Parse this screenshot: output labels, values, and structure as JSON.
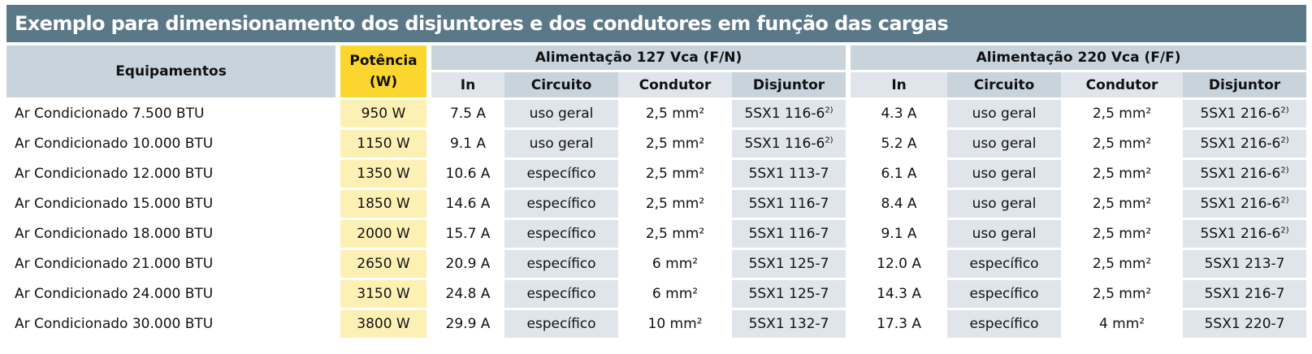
{
  "title": "Exemplo para dimensionamento dos disjuntores e dos condutores em função das cargas",
  "headers": {
    "equipamentos": "Equipamentos",
    "potencia_line1": "Potência",
    "potencia_line2": "(W)",
    "group_127": "Alimentação 127 Vca (F/N)",
    "group_220": "Alimentação 220 Vca (F/F)",
    "in": "In",
    "circuito": "Circuito",
    "condutor": "Condutor",
    "disjuntor": "Disjuntor"
  },
  "rows": [
    {
      "equip": "Ar Condicionado 7.500 BTU",
      "pot": "950 W",
      "a": {
        "in": "7.5 A",
        "circ": "uso geral",
        "cond": "2,5 mm²",
        "disj": "5SX1 116-6",
        "note": "2)"
      },
      "b": {
        "in": "4.3 A",
        "circ": "uso geral",
        "cond": "2,5 mm²",
        "disj": "5SX1 216-6",
        "note": "2)"
      }
    },
    {
      "equip": "Ar Condicionado 10.000 BTU",
      "pot": "1150 W",
      "a": {
        "in": "9.1 A",
        "circ": "uso geral",
        "cond": "2,5 mm²",
        "disj": "5SX1 116-6",
        "note": "2)"
      },
      "b": {
        "in": "5.2 A",
        "circ": "uso geral",
        "cond": "2,5 mm²",
        "disj": "5SX1 216-6",
        "note": "2)"
      }
    },
    {
      "equip": "Ar Condicionado 12.000 BTU",
      "pot": "1350 W",
      "a": {
        "in": "10.6 A",
        "circ": "específico",
        "cond": "2,5 mm²",
        "disj": "5SX1 113-7",
        "note": ""
      },
      "b": {
        "in": "6.1 A",
        "circ": "uso geral",
        "cond": "2,5 mm²",
        "disj": "5SX1 216-6",
        "note": "2)"
      }
    },
    {
      "equip": "Ar Condicionado 15.000 BTU",
      "pot": "1850 W",
      "a": {
        "in": "14.6 A",
        "circ": "específico",
        "cond": "2,5 mm²",
        "disj": "5SX1 116-7",
        "note": ""
      },
      "b": {
        "in": "8.4 A",
        "circ": "uso geral",
        "cond": "2,5 mm²",
        "disj": "5SX1 216-6",
        "note": "2)"
      }
    },
    {
      "equip": "Ar Condicionado 18.000 BTU",
      "pot": "2000 W",
      "a": {
        "in": "15.7 A",
        "circ": "específico",
        "cond": "2,5 mm²",
        "disj": "5SX1 116-7",
        "note": ""
      },
      "b": {
        "in": "9.1 A",
        "circ": "uso geral",
        "cond": "2,5 mm²",
        "disj": "5SX1 216-6",
        "note": "2)"
      }
    },
    {
      "equip": "Ar Condicionado 21.000 BTU",
      "pot": "2650 W",
      "a": {
        "in": "20.9 A",
        "circ": "específico",
        "cond": "6 mm²",
        "disj": "5SX1 125-7",
        "note": ""
      },
      "b": {
        "in": "12.0 A",
        "circ": "específico",
        "cond": "2,5 mm²",
        "disj": "5SX1 213-7",
        "note": ""
      }
    },
    {
      "equip": "Ar Condicionado 24.000 BTU",
      "pot": "3150 W",
      "a": {
        "in": "24.8 A",
        "circ": "específico",
        "cond": "6 mm²",
        "disj": "5SX1 125-7",
        "note": ""
      },
      "b": {
        "in": "14.3 A",
        "circ": "específico",
        "cond": "2,5 mm²",
        "disj": "5SX1 216-7",
        "note": ""
      }
    },
    {
      "equip": "Ar Condicionado 30.000 BTU",
      "pot": "3800 W",
      "a": {
        "in": "29.9 A",
        "circ": "específico",
        "cond": "10 mm²",
        "disj": "5SX1 132-7",
        "note": ""
      },
      "b": {
        "in": "17.3 A",
        "circ": "específico",
        "cond": "4 mm²",
        "disj": "5SX1 220-7",
        "note": ""
      }
    }
  ]
}
